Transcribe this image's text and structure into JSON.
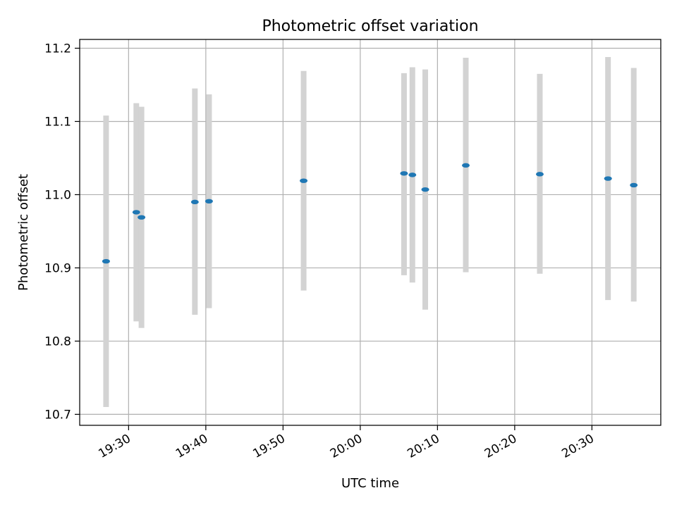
{
  "chart_data": {
    "type": "scatter",
    "title": "Photometric offset variation",
    "xlabel": "UTC time",
    "ylabel": "Photometric offset",
    "xlim": [
      "19:23:40",
      "20:38:55"
    ],
    "ylim": [
      10.685,
      11.212
    ],
    "x_ticks": [
      "19:30",
      "19:40",
      "19:50",
      "20:00",
      "20:10",
      "20:20",
      "20:30"
    ],
    "y_ticks": [
      "10.7",
      "10.8",
      "10.9",
      "11.0",
      "11.1",
      "11.2"
    ],
    "grid": true,
    "point_color": "#1f77b4",
    "errorbar_color": "#d3d3d3",
    "series": [
      {
        "points": [
          {
            "x": "19:27:05",
            "y": 10.909,
            "ylow": 10.71,
            "yhigh": 11.108
          },
          {
            "x": "19:31:00",
            "y": 10.976,
            "ylow": 10.827,
            "yhigh": 11.125
          },
          {
            "x": "19:31:40",
            "y": 10.969,
            "ylow": 10.818,
            "yhigh": 11.12
          },
          {
            "x": "19:38:35",
            "y": 10.99,
            "ylow": 10.836,
            "yhigh": 11.145
          },
          {
            "x": "19:40:25",
            "y": 10.991,
            "ylow": 10.845,
            "yhigh": 11.137
          },
          {
            "x": "19:52:40",
            "y": 11.019,
            "ylow": 10.869,
            "yhigh": 11.169
          },
          {
            "x": "20:05:40",
            "y": 11.029,
            "ylow": 10.89,
            "yhigh": 11.166
          },
          {
            "x": "20:06:45",
            "y": 11.027,
            "ylow": 10.88,
            "yhigh": 11.174
          },
          {
            "x": "20:08:25",
            "y": 11.007,
            "ylow": 10.843,
            "yhigh": 11.171
          },
          {
            "x": "20:13:40",
            "y": 11.04,
            "ylow": 10.894,
            "yhigh": 11.187
          },
          {
            "x": "20:23:15",
            "y": 11.028,
            "ylow": 10.892,
            "yhigh": 11.165
          },
          {
            "x": "20:32:05",
            "y": 11.022,
            "ylow": 10.856,
            "yhigh": 11.188
          },
          {
            "x": "20:35:25",
            "y": 11.013,
            "ylow": 10.854,
            "yhigh": 11.173
          }
        ]
      }
    ]
  }
}
